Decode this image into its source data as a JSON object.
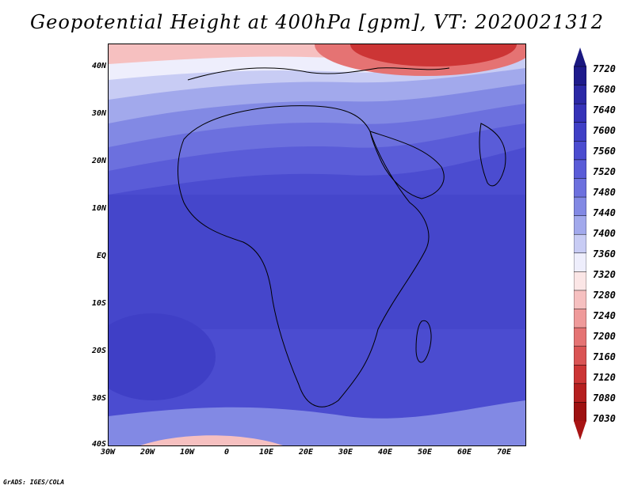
{
  "title": "Geopotential Height at 400hPa [gpm], VT: 2020021312",
  "credit": "GrADS: IGES/COLA",
  "lat_labels": [
    "40N",
    "30N",
    "20N",
    "10N",
    "EQ",
    "10S",
    "20S",
    "30S",
    "40S"
  ],
  "lon_labels": [
    "30W",
    "20W",
    "10W",
    "0",
    "10E",
    "20E",
    "30E",
    "40E",
    "50E",
    "60E",
    "70E"
  ],
  "colorbar": {
    "labels": [
      "7720",
      "7680",
      "7640",
      "7600",
      "7560",
      "7520",
      "7480",
      "7440",
      "7400",
      "7360",
      "7320",
      "7280",
      "7240",
      "7200",
      "7160",
      "7120",
      "7080",
      "7030"
    ],
    "colors": [
      "#1e1b8c",
      "#2b28a6",
      "#3532b8",
      "#3f3fc6",
      "#4b4cd0",
      "#5a5cd8",
      "#6c70de",
      "#8289e4",
      "#a2a9ec",
      "#c8ccf4",
      "#eeeefc",
      "#fbe6e6",
      "#f6c0c0",
      "#ef9a9a",
      "#e57373",
      "#da5454",
      "#cc3535",
      "#b51f1f",
      "#9e1111"
    ],
    "top_cap_color": "#1a1880",
    "bottom_cap_color": "#a81414"
  }
}
